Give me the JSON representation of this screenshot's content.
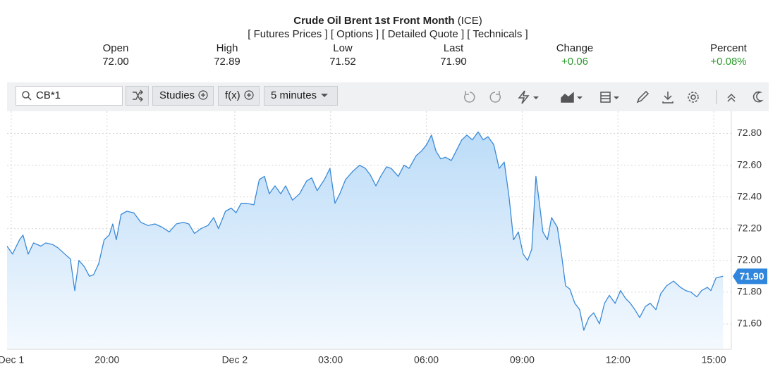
{
  "header": {
    "title": "Crude Oil Brent 1st Front Month",
    "exchange": "(ICE)",
    "links": [
      "[ Futures Prices ]",
      "[ Options ]",
      "[ Detailed Quote ]",
      "[ Technicals ]"
    ]
  },
  "quote": [
    {
      "label": "Open",
      "value": "72.00"
    },
    {
      "label": "High",
      "value": "72.89"
    },
    {
      "label": "Low",
      "value": "71.52"
    },
    {
      "label": "Last",
      "value": "71.90"
    },
    {
      "label": "Change",
      "value": "+0.06"
    },
    {
      "label": "Percent",
      "value": "+0.08%"
    }
  ],
  "toolbar": {
    "symbol": "CB*1",
    "studies": "Studies",
    "fx": "f(x)",
    "interval": "5 minutes"
  },
  "chart_data": {
    "type": "area",
    "color": "#3a8ad8",
    "grid": true,
    "x": [
      -7.13,
      -6.96,
      -6.74,
      -6.63,
      -6.47,
      -6.3,
      -6.07,
      -5.92,
      -5.7,
      -5.54,
      -5.32,
      -5.15,
      -5.01,
      -4.88,
      -4.71,
      -4.55,
      -4.42,
      -4.26,
      -4.09,
      -3.93,
      -3.82,
      -3.71,
      -3.56,
      -3.38,
      -3.16,
      -2.94,
      -2.72,
      -2.5,
      -2.28,
      -2.05,
      -1.83,
      -1.61,
      -1.44,
      -1.26,
      -1.06,
      -0.84,
      -0.66,
      -0.51,
      -0.29,
      -0.11,
      0.04,
      0.2,
      0.38,
      0.6,
      0.77,
      0.93,
      1.08,
      1.26,
      1.44,
      1.59,
      1.81,
      2.03,
      2.25,
      2.41,
      2.58,
      2.81,
      2.98,
      3.14,
      3.29,
      3.47,
      3.69,
      3.91,
      4.09,
      4.24,
      4.42,
      4.57,
      4.75,
      4.9,
      5.12,
      5.3,
      5.46,
      5.68,
      5.85,
      6.01,
      6.16,
      6.3,
      6.45,
      6.6,
      6.78,
      6.96,
      7.11,
      7.27,
      7.44,
      7.62,
      7.78,
      7.93,
      8.11,
      8.28,
      8.44,
      8.59,
      8.73,
      8.88,
      9.03,
      9.17,
      9.3,
      9.43,
      9.54,
      9.65,
      9.79,
      9.92,
      10.1,
      10.23,
      10.36,
      10.49,
      10.65,
      10.8,
      10.93,
      11.09,
      11.24,
      11.42,
      11.58,
      11.73,
      11.91,
      12.08,
      12.24,
      12.39,
      12.53,
      12.68,
      12.86,
      13.01,
      13.19,
      13.34,
      13.52,
      13.74,
      13.96,
      14.12,
      14.29,
      14.47,
      14.62,
      14.8,
      14.91,
      15.07,
      15.29
    ],
    "values": [
      72.09,
      72.04,
      72.13,
      72.16,
      72.04,
      72.11,
      72.09,
      72.11,
      72.1,
      72.08,
      72.04,
      72.01,
      71.81,
      72.0,
      71.96,
      71.9,
      71.91,
      71.98,
      72.13,
      72.16,
      72.23,
      72.13,
      72.29,
      72.31,
      72.3,
      72.24,
      72.22,
      72.23,
      72.21,
      72.18,
      72.23,
      72.24,
      72.23,
      72.17,
      72.2,
      72.22,
      72.27,
      72.2,
      72.31,
      72.33,
      72.3,
      72.36,
      72.36,
      72.35,
      72.51,
      72.53,
      72.42,
      72.47,
      72.42,
      72.47,
      72.38,
      72.42,
      72.5,
      72.52,
      72.44,
      72.51,
      72.58,
      72.36,
      72.42,
      72.51,
      72.56,
      72.6,
      72.58,
      72.54,
      72.47,
      72.53,
      72.59,
      72.58,
      72.53,
      72.6,
      72.58,
      72.66,
      72.69,
      72.73,
      72.79,
      72.69,
      72.64,
      72.65,
      72.63,
      72.7,
      72.76,
      72.79,
      72.76,
      72.81,
      72.76,
      72.78,
      72.73,
      72.58,
      72.62,
      72.4,
      72.13,
      72.18,
      72.04,
      72.0,
      72.07,
      72.53,
      72.36,
      72.18,
      72.13,
      72.27,
      72.21,
      72.04,
      71.84,
      71.82,
      71.73,
      71.69,
      71.56,
      71.64,
      71.67,
      71.6,
      71.73,
      71.78,
      71.73,
      71.81,
      71.76,
      71.73,
      71.69,
      71.64,
      71.71,
      71.73,
      71.69,
      71.79,
      71.84,
      71.87,
      71.83,
      71.81,
      71.8,
      71.77,
      71.81,
      71.83,
      71.81,
      71.89,
      71.9
    ],
    "xlim": [
      -7.13,
      15.55
    ],
    "xticks": [
      {
        "value": -7,
        "label": "Dec 1"
      },
      {
        "value": -4,
        "label": "20:00"
      },
      {
        "value": 0,
        "label": "Dec 2"
      },
      {
        "value": 3,
        "label": "03:00"
      },
      {
        "value": 6,
        "label": "06:00"
      },
      {
        "value": 9,
        "label": "09:00"
      },
      {
        "value": 12,
        "label": "12:00"
      },
      {
        "value": 15,
        "label": "15:00"
      }
    ],
    "ylim": [
      71.44,
      72.94
    ],
    "yticks": [
      {
        "value": 71.6,
        "label": "71.60"
      },
      {
        "value": 71.8,
        "label": "71.80"
      },
      {
        "value": 72.0,
        "label": "72.00"
      },
      {
        "value": 72.2,
        "label": "72.20"
      },
      {
        "value": 72.4,
        "label": "72.40"
      },
      {
        "value": 72.6,
        "label": "72.60"
      },
      {
        "value": 72.8,
        "label": "72.80"
      }
    ]
  }
}
